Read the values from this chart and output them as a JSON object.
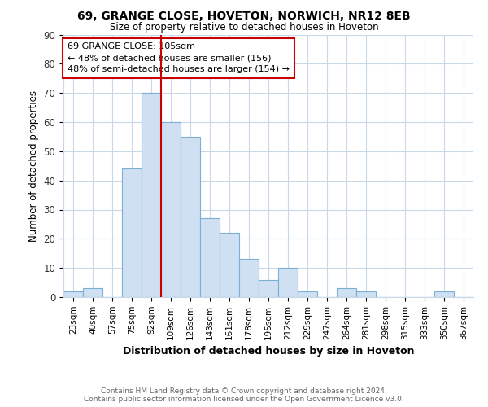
{
  "title1": "69, GRANGE CLOSE, HOVETON, NORWICH, NR12 8EB",
  "title2": "Size of property relative to detached houses in Hoveton",
  "xlabel": "Distribution of detached houses by size in Hoveton",
  "ylabel": "Number of detached properties",
  "bin_labels": [
    "23sqm",
    "40sqm",
    "57sqm",
    "75sqm",
    "92sqm",
    "109sqm",
    "126sqm",
    "143sqm",
    "161sqm",
    "178sqm",
    "195sqm",
    "212sqm",
    "229sqm",
    "247sqm",
    "264sqm",
    "281sqm",
    "298sqm",
    "315sqm",
    "333sqm",
    "350sqm",
    "367sqm"
  ],
  "bin_values": [
    2,
    3,
    0,
    44,
    70,
    60,
    55,
    27,
    22,
    13,
    6,
    10,
    2,
    0,
    3,
    2,
    0,
    0,
    0,
    2,
    0
  ],
  "bar_color": "#cfe0f3",
  "bar_edge_color": "#7bafd4",
  "vline_x_data": 4.5,
  "vline_color": "#cc0000",
  "annotation_line1": "69 GRANGE CLOSE: 105sqm",
  "annotation_line2": "← 48% of detached houses are smaller (156)",
  "annotation_line3": "48% of semi-detached houses are larger (154) →",
  "annotation_box_color": "#ffffff",
  "annotation_box_edge": "#cc0000",
  "ylim": [
    0,
    90
  ],
  "yticks": [
    0,
    10,
    20,
    30,
    40,
    50,
    60,
    70,
    80,
    90
  ],
  "footer": "Contains HM Land Registry data © Crown copyright and database right 2024.\nContains public sector information licensed under the Open Government Licence v3.0.",
  "bg_color": "#ffffff",
  "grid_color": "#c8d8e8"
}
